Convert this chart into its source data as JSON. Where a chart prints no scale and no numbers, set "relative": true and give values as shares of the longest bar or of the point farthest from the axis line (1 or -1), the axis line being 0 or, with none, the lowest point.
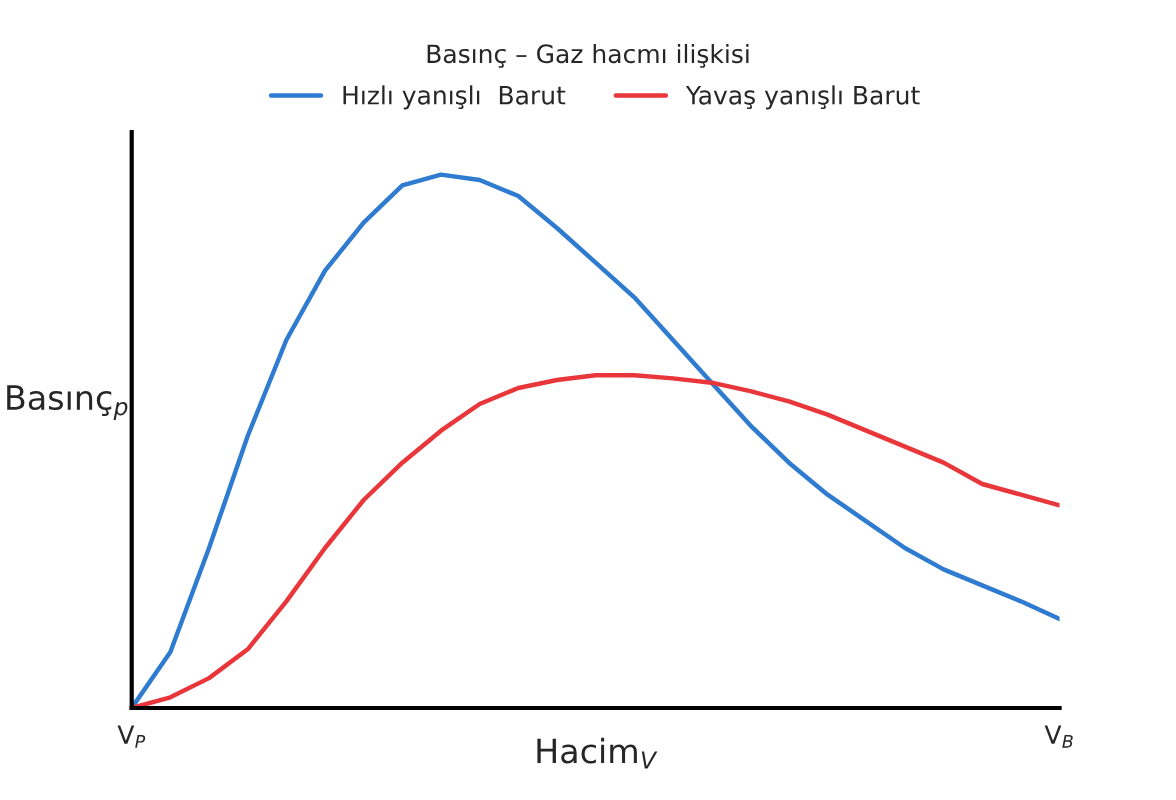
{
  "chart_data": {
    "type": "line",
    "title": "Basınç – Gaz hacmı ilişkisi",
    "xlabel": "Hacim$_{V}$",
    "ylabel": "Basınç$_{p}$",
    "relative": true,
    "legend": "top",
    "grid": false,
    "marker": "none",
    "line_style": "solid",
    "categories": [
      "V$_{P}$",
      null,
      null,
      null,
      null,
      null,
      null,
      null,
      null,
      null,
      null,
      null,
      null,
      null,
      null,
      null,
      null,
      null,
      null,
      null,
      null,
      null,
      null,
      null,
      "V$_{B}$"
    ],
    "series": [
      {
        "name": "Hızlı yanışlı  Barut",
        "color": "#2e7bcf",
        "values": [
          0,
          0.105,
          0.3,
          0.51,
          0.69,
          0.82,
          0.91,
          0.98,
          1.0,
          0.99,
          0.96,
          0.9,
          0.835,
          0.77,
          0.69,
          0.61,
          0.53,
          0.46,
          0.4,
          0.35,
          0.3,
          0.26,
          0.23,
          0.2,
          0.167
        ]
      },
      {
        "name": "Yavaş yanışlı Barut",
        "color": "#e8363a",
        "values": [
          0,
          0.02,
          0.056,
          0.11,
          0.2,
          0.3,
          0.39,
          0.46,
          0.52,
          0.57,
          0.6,
          0.615,
          0.624,
          0.624,
          0.618,
          0.61,
          0.594,
          0.575,
          0.55,
          0.52,
          0.49,
          0.46,
          0.42,
          0.4,
          0.38
        ]
      }
    ]
  }
}
